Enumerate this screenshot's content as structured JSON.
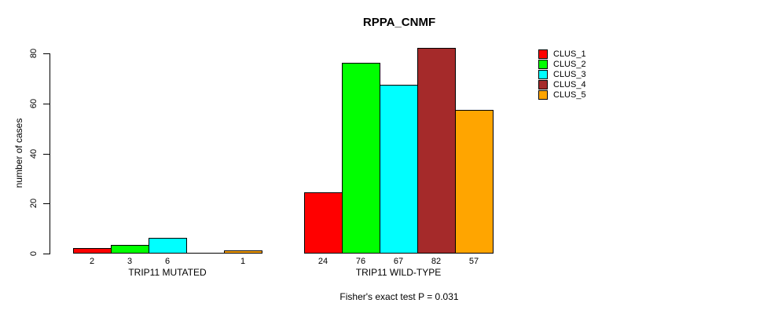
{
  "title": "RPPA_CNMF",
  "y_axis": {
    "label": "number of cases"
  },
  "footer": "Fisher's exact test P = 0.031",
  "legend": {
    "items": [
      {
        "label": "CLUS_1",
        "color": "#FF0000"
      },
      {
        "label": "CLUS_2",
        "color": "#00FF00"
      },
      {
        "label": "CLUS_3",
        "color": "#00FFFF"
      },
      {
        "label": "CLUS_4",
        "color": "#A52A2A"
      },
      {
        "label": "CLUS_5",
        "color": "#FFA500"
      }
    ]
  },
  "chart_data": {
    "type": "bar",
    "title": "RPPA_CNMF",
    "ylabel": "number of cases",
    "ylim": [
      0,
      80
    ],
    "yticks": [
      0,
      20,
      40,
      60,
      80
    ],
    "grid": false,
    "legend_position": "right",
    "series_names": [
      "CLUS_1",
      "CLUS_2",
      "CLUS_3",
      "CLUS_4",
      "CLUS_5"
    ],
    "colors": [
      "#FF0000",
      "#00FF00",
      "#00FFFF",
      "#A52A2A",
      "#FFA500"
    ],
    "groups": [
      {
        "label": "TRIP11 MUTATED",
        "values": [
          2,
          3,
          6,
          0,
          1
        ]
      },
      {
        "label": "TRIP11 WILD-TYPE",
        "values": [
          24,
          76,
          67,
          82,
          57
        ]
      }
    ],
    "bar_value_labels_shown": true,
    "zero_value_labels_hidden": true,
    "annotation": "Fisher's exact test P = 0.031"
  }
}
